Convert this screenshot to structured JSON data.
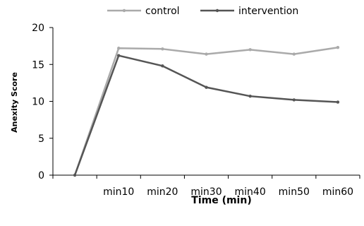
{
  "chart_data": {
    "type": "line",
    "title": "",
    "xlabel": "Time (min)",
    "ylabel": "Anexity Score",
    "categories": [
      "",
      "min10",
      "min20",
      "min30",
      "min40",
      "min50",
      "min60"
    ],
    "series": [
      {
        "name": "control",
        "values": [
          0,
          17.2,
          17.1,
          16.4,
          17.0,
          16.4,
          17.3
        ],
        "color": "#aaaaaa"
      },
      {
        "name": "intervention",
        "values": [
          0,
          16.2,
          14.8,
          11.9,
          10.7,
          10.2,
          9.9
        ],
        "color": "#555555"
      }
    ],
    "ylim": [
      0,
      20
    ],
    "yticks": [
      0,
      5,
      10,
      15,
      20
    ],
    "grid": false,
    "legend_position": "top"
  }
}
